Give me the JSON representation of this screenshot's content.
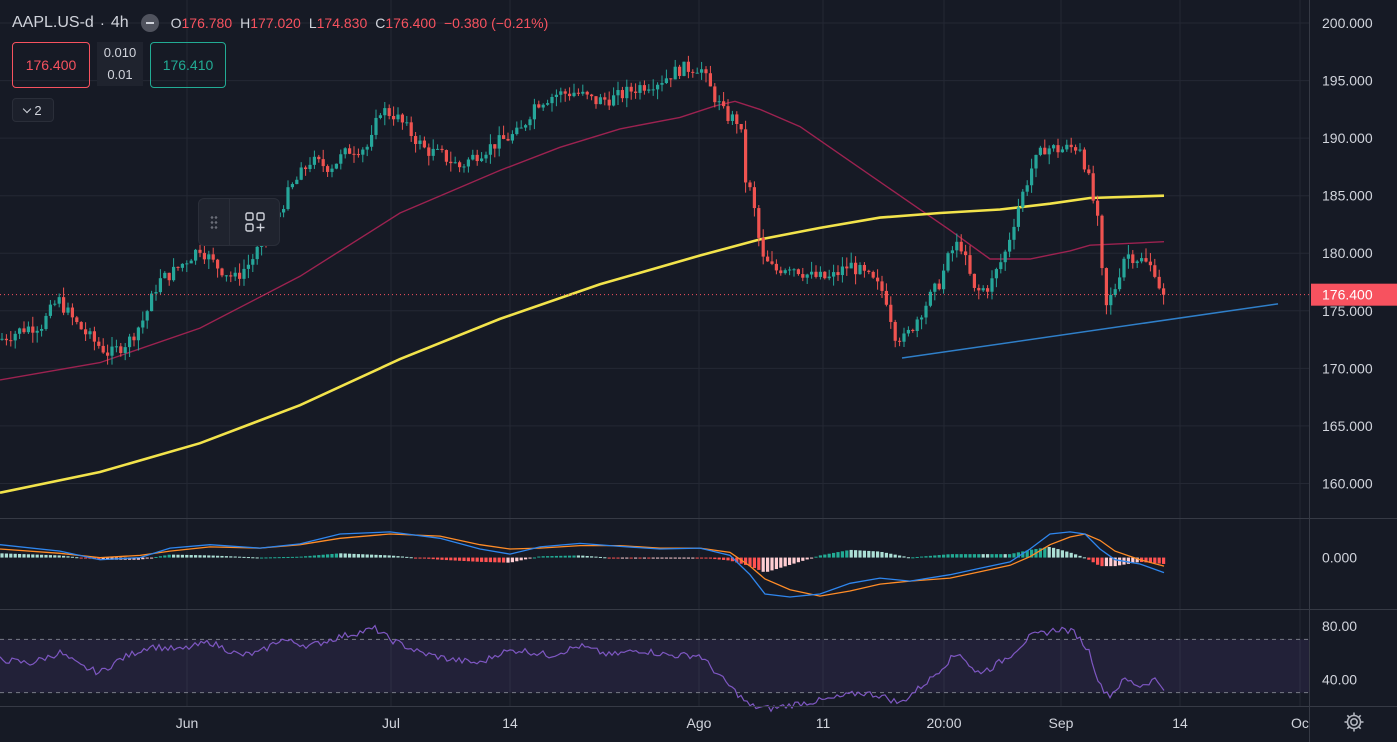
{
  "legend": {
    "symbol": "AAPL.US-d",
    "separator": "·",
    "timeframe": "4h",
    "open_label": "O",
    "open": "176.780",
    "high_label": "H",
    "high": "177.020",
    "low_label": "L",
    "low": "174.830",
    "close_label": "C",
    "close": "176.400",
    "change": "−0.380 (−0.21%)"
  },
  "trade": {
    "sell_price": "176.400",
    "spread_top": "0.010",
    "spread_bottom": "0.01",
    "buy_price": "176.410"
  },
  "indicators_toggle": {
    "count": "2"
  },
  "price_axis": {
    "ticks": [
      "200.000",
      "195.000",
      "190.000",
      "185.000",
      "180.000",
      "175.000",
      "170.000",
      "165.000",
      "160.000"
    ],
    "last_price_label": "176.400"
  },
  "macd_axis": {
    "ticks": [
      "0.000"
    ]
  },
  "rsi_axis": {
    "ticks": [
      "80.00",
      "40.00"
    ]
  },
  "time_axis": {
    "ticks": [
      "Jun",
      "Jul",
      "14",
      "Ago",
      "11",
      "20:00",
      "Sep",
      "14",
      "Oc"
    ]
  },
  "icons": {
    "drag": "drag-handle-icon",
    "objects": "object-tree-icon",
    "settings": "gear-icon"
  },
  "colors": {
    "background": "#161a25",
    "up": "#26a69a",
    "down": "#ef5350",
    "ma_fast": "#9c2250",
    "ma_slow": "#f2e34b",
    "trendline": "#2f7fc9",
    "macd_line": "#2f86ee",
    "signal_line": "#ff8c27",
    "rsi_line": "#7e57c2",
    "last_price": "#f7525f"
  },
  "chart_data": [
    {
      "type": "candlestick",
      "panel": "price",
      "symbol": "AAPL.US-d",
      "timeframe": "4h",
      "ylim": [
        157,
        202
      ],
      "grid": true,
      "anchors": [
        [
          0,
          172.5
        ],
        [
          25,
          173.5
        ],
        [
          42,
          173.8
        ],
        [
          58,
          176.0
        ],
        [
          75,
          174.0
        ],
        [
          92,
          172.5
        ],
        [
          110,
          171.2
        ],
        [
          130,
          172.5
        ],
        [
          145,
          174.5
        ],
        [
          158,
          177.5
        ],
        [
          175,
          178.5
        ],
        [
          200,
          180.5
        ],
        [
          215,
          179.0
        ],
        [
          235,
          177.8
        ],
        [
          250,
          179.2
        ],
        [
          270,
          182.0
        ],
        [
          290,
          185.5
        ],
        [
          310,
          188.0
        ],
        [
          330,
          187.5
        ],
        [
          350,
          189.0
        ],
        [
          370,
          189.3
        ],
        [
          380,
          192.5
        ],
        [
          395,
          192.0
        ],
        [
          410,
          190.5
        ],
        [
          425,
          189.0
        ],
        [
          442,
          188.5
        ],
        [
          460,
          187.5
        ],
        [
          475,
          188.5
        ],
        [
          495,
          189.5
        ],
        [
          520,
          190.5
        ],
        [
          535,
          193.0
        ],
        [
          555,
          193.8
        ],
        [
          575,
          194.0
        ],
        [
          595,
          193.2
        ],
        [
          615,
          193.5
        ],
        [
          640,
          194.5
        ],
        [
          660,
          195.0
        ],
        [
          680,
          196.0
        ],
        [
          700,
          196.2
        ],
        [
          712,
          194.0
        ],
        [
          725,
          192.0
        ],
        [
          740,
          191.4
        ],
        [
          745,
          186.5
        ],
        [
          752,
          185.0
        ],
        [
          762,
          179.5
        ],
        [
          775,
          178.5
        ],
        [
          790,
          179.0
        ],
        [
          810,
          178.0
        ],
        [
          830,
          177.8
        ],
        [
          850,
          179.0
        ],
        [
          870,
          177.8
        ],
        [
          885,
          176.5
        ],
        [
          895,
          173.0
        ],
        [
          905,
          172.5
        ],
        [
          920,
          174.8
        ],
        [
          940,
          177.5
        ],
        [
          950,
          180.0
        ],
        [
          960,
          181.0
        ],
        [
          975,
          176.5
        ],
        [
          990,
          177.2
        ],
        [
          1005,
          180.0
        ],
        [
          1018,
          184.0
        ],
        [
          1032,
          187.5
        ],
        [
          1045,
          189.2
        ],
        [
          1060,
          189.0
        ],
        [
          1080,
          189.3
        ],
        [
          1090,
          186.0
        ],
        [
          1098,
          182.5
        ],
        [
          1105,
          175.0
        ],
        [
          1115,
          177.0
        ],
        [
          1125,
          180.0
        ],
        [
          1140,
          179.5
        ],
        [
          1155,
          178.5
        ],
        [
          1160,
          177.0
        ],
        [
          1164,
          176.4
        ]
      ],
      "moving_averages": [
        {
          "color": "#9c2250",
          "points": [
            [
              0,
              169.0
            ],
            [
              100,
              170.5
            ],
            [
              200,
              173.5
            ],
            [
              300,
              178.0
            ],
            [
              400,
              183.5
            ],
            [
              500,
              187.2
            ],
            [
              560,
              189.2
            ],
            [
              620,
              190.8
            ],
            [
              680,
              191.8
            ],
            [
              715,
              192.8
            ],
            [
              735,
              193.2
            ],
            [
              760,
              192.5
            ],
            [
              800,
              191.0
            ],
            [
              850,
              188.0
            ],
            [
              900,
              185.0
            ],
            [
              950,
              182.0
            ],
            [
              990,
              179.5
            ],
            [
              1030,
              179.5
            ],
            [
              1070,
              180.2
            ],
            [
              1090,
              180.7
            ],
            [
              1164,
              181.0
            ]
          ]
        },
        {
          "color": "#f2e34b",
          "points": [
            [
              0,
              159.2
            ],
            [
              100,
              161.0
            ],
            [
              200,
              163.5
            ],
            [
              300,
              166.8
            ],
            [
              400,
              170.8
            ],
            [
              500,
              174.3
            ],
            [
              600,
              177.3
            ],
            [
              700,
              179.8
            ],
            [
              760,
              181.2
            ],
            [
              820,
              182.2
            ],
            [
              880,
              183.1
            ],
            [
              940,
              183.5
            ],
            [
              1000,
              183.8
            ],
            [
              1050,
              184.3
            ],
            [
              1090,
              184.8
            ],
            [
              1164,
              185.0
            ]
          ]
        }
      ],
      "trendline": {
        "from": [
          902,
          170.9
        ],
        "to": [
          1278,
          175.6
        ]
      },
      "last_price": 176.4
    },
    {
      "type": "line",
      "panel": "macd",
      "zero_line": 0,
      "ylim": [
        -1.2,
        0.9
      ],
      "macd": [
        [
          0,
          0.3
        ],
        [
          60,
          0.15
        ],
        [
          100,
          -0.05
        ],
        [
          140,
          0.0
        ],
        [
          170,
          0.22
        ],
        [
          210,
          0.3
        ],
        [
          260,
          0.22
        ],
        [
          300,
          0.32
        ],
        [
          340,
          0.55
        ],
        [
          390,
          0.6
        ],
        [
          440,
          0.45
        ],
        [
          480,
          0.2
        ],
        [
          510,
          0.08
        ],
        [
          540,
          0.25
        ],
        [
          580,
          0.33
        ],
        [
          620,
          0.26
        ],
        [
          660,
          0.2
        ],
        [
          700,
          0.22
        ],
        [
          730,
          0.05
        ],
        [
          750,
          -0.4
        ],
        [
          765,
          -0.85
        ],
        [
          790,
          -0.92
        ],
        [
          820,
          -0.85
        ],
        [
          850,
          -0.6
        ],
        [
          880,
          -0.48
        ],
        [
          910,
          -0.55
        ],
        [
          950,
          -0.4
        ],
        [
          980,
          -0.25
        ],
        [
          1010,
          -0.1
        ],
        [
          1030,
          0.2
        ],
        [
          1050,
          0.55
        ],
        [
          1070,
          0.6
        ],
        [
          1085,
          0.55
        ],
        [
          1100,
          0.2
        ],
        [
          1115,
          -0.05
        ],
        [
          1140,
          -0.15
        ],
        [
          1164,
          -0.35
        ]
      ],
      "signal": [
        [
          0,
          0.2
        ],
        [
          60,
          0.1
        ],
        [
          100,
          0.0
        ],
        [
          140,
          0.05
        ],
        [
          170,
          0.15
        ],
        [
          210,
          0.25
        ],
        [
          260,
          0.22
        ],
        [
          300,
          0.3
        ],
        [
          340,
          0.45
        ],
        [
          390,
          0.55
        ],
        [
          440,
          0.5
        ],
        [
          480,
          0.3
        ],
        [
          510,
          0.2
        ],
        [
          540,
          0.22
        ],
        [
          580,
          0.28
        ],
        [
          620,
          0.28
        ],
        [
          660,
          0.22
        ],
        [
          700,
          0.22
        ],
        [
          730,
          0.12
        ],
        [
          750,
          -0.2
        ],
        [
          765,
          -0.5
        ],
        [
          790,
          -0.75
        ],
        [
          820,
          -0.9
        ],
        [
          850,
          -0.78
        ],
        [
          880,
          -0.62
        ],
        [
          910,
          -0.55
        ],
        [
          950,
          -0.48
        ],
        [
          980,
          -0.33
        ],
        [
          1010,
          -0.18
        ],
        [
          1030,
          0.02
        ],
        [
          1050,
          0.3
        ],
        [
          1070,
          0.48
        ],
        [
          1085,
          0.55
        ],
        [
          1100,
          0.4
        ],
        [
          1115,
          0.15
        ],
        [
          1140,
          -0.05
        ],
        [
          1164,
          -0.2
        ]
      ]
    },
    {
      "type": "line",
      "panel": "rsi",
      "ylim": [
        20,
        92
      ],
      "levels": [
        70,
        30
      ],
      "rsi": [
        [
          0,
          55
        ],
        [
          30,
          52
        ],
        [
          60,
          60
        ],
        [
          80,
          50
        ],
        [
          100,
          45
        ],
        [
          120,
          55
        ],
        [
          150,
          65
        ],
        [
          180,
          62
        ],
        [
          210,
          68
        ],
        [
          240,
          58
        ],
        [
          260,
          60
        ],
        [
          280,
          70
        ],
        [
          310,
          65
        ],
        [
          340,
          72
        ],
        [
          375,
          78
        ],
        [
          390,
          70
        ],
        [
          420,
          60
        ],
        [
          450,
          55
        ],
        [
          480,
          52
        ],
        [
          500,
          60
        ],
        [
          520,
          62
        ],
        [
          550,
          58
        ],
        [
          580,
          65
        ],
        [
          610,
          58
        ],
        [
          640,
          62
        ],
        [
          670,
          58
        ],
        [
          700,
          58
        ],
        [
          720,
          42
        ],
        [
          750,
          20
        ],
        [
          770,
          18
        ],
        [
          800,
          22
        ],
        [
          830,
          25
        ],
        [
          860,
          30
        ],
        [
          880,
          28
        ],
        [
          900,
          22
        ],
        [
          930,
          40
        ],
        [
          950,
          55
        ],
        [
          960,
          60
        ],
        [
          975,
          45
        ],
        [
          990,
          48
        ],
        [
          1010,
          58
        ],
        [
          1030,
          72
        ],
        [
          1045,
          75
        ],
        [
          1060,
          78
        ],
        [
          1075,
          75
        ],
        [
          1090,
          60
        ],
        [
          1100,
          35
        ],
        [
          1110,
          28
        ],
        [
          1125,
          40
        ],
        [
          1140,
          35
        ],
        [
          1155,
          40
        ],
        [
          1164,
          34
        ]
      ]
    }
  ]
}
